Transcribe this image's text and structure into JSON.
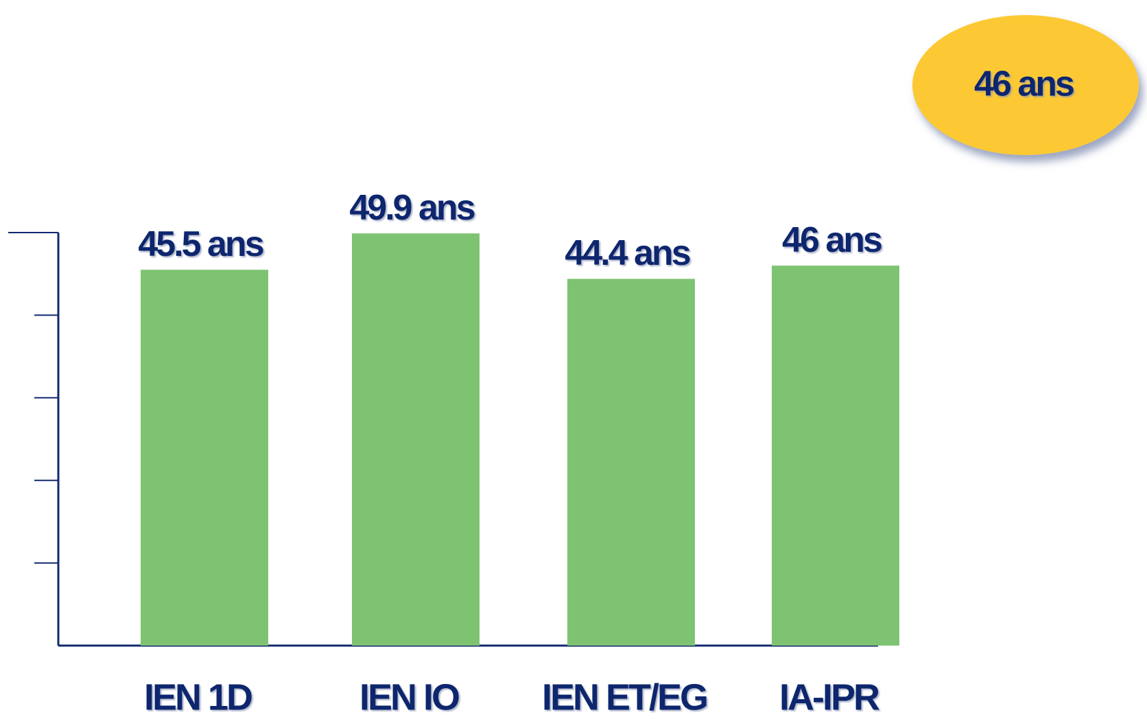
{
  "chart_data": {
    "type": "bar",
    "categories": [
      "IEN 1D",
      "IEN IO",
      "IEN ET/EG",
      "IA-IPR"
    ],
    "values": [
      45.5,
      49.9,
      44.4,
      46
    ],
    "value_labels": [
      "45.5 ans",
      "49.9 ans",
      "44.4 ans",
      "46 ans"
    ],
    "color": "#7ec372",
    "ylim": [
      0,
      50
    ],
    "yticks": [
      0,
      10,
      20,
      30,
      40,
      50
    ],
    "annotation": "46 ans"
  }
}
